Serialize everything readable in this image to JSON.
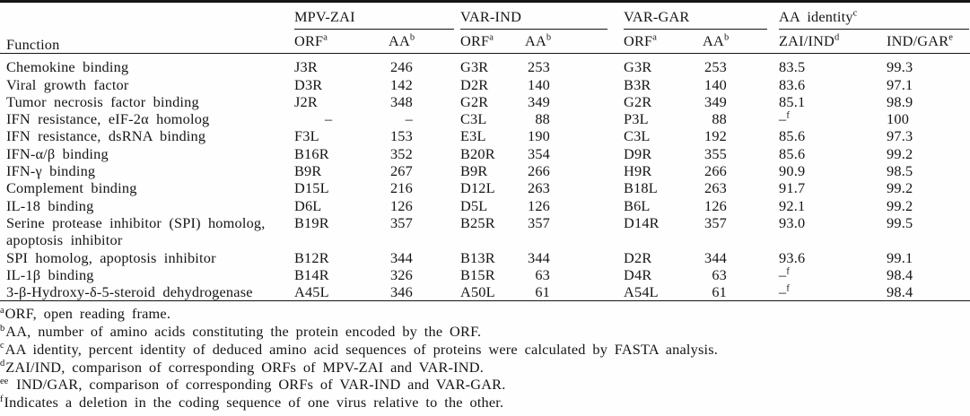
{
  "colors": {
    "ink": "#151515",
    "background": "#fefefe",
    "rule": "#151515"
  },
  "table": {
    "header": {
      "function": "Function",
      "groups": [
        {
          "label": "MPV-ZAI",
          "sup": ""
        },
        {
          "label": "VAR-IND",
          "sup": ""
        },
        {
          "label": "VAR-GAR",
          "sup": ""
        },
        {
          "label": "AA identity",
          "sup": "c"
        }
      ],
      "subheaders": {
        "orf": {
          "label": "ORF",
          "sup": "a"
        },
        "aa": {
          "label": "AA",
          "sup": "b"
        },
        "zai_ind": {
          "label": "ZAI/IND",
          "sup": "d"
        },
        "ind_gar": {
          "label": "IND/GAR",
          "sup": "e"
        }
      }
    },
    "rows": [
      {
        "function": "Chemokine binding",
        "mpv_orf": "J3R",
        "mpv_aa": "246",
        "ind_orf": "G3R",
        "ind_aa": "253",
        "gar_orf": "G3R",
        "gar_aa": "253",
        "zai_ind": "83.5",
        "zai_ind_sup": "",
        "ind_gar": "99.3"
      },
      {
        "function": "Viral growth factor",
        "mpv_orf": "D3R",
        "mpv_aa": "142",
        "ind_orf": "D2R",
        "ind_aa": "140",
        "gar_orf": "B3R",
        "gar_aa": "140",
        "zai_ind": "83.6",
        "zai_ind_sup": "",
        "ind_gar": "97.1"
      },
      {
        "function": "Tumor necrosis factor binding",
        "mpv_orf": "J2R",
        "mpv_aa": "348",
        "ind_orf": "G2R",
        "ind_aa": "349",
        "gar_orf": "G2R",
        "gar_aa": "349",
        "zai_ind": "85.1",
        "zai_ind_sup": "",
        "ind_gar": "98.9"
      },
      {
        "function": "IFN resistance, eIF-2α homolog",
        "mpv_orf": "–",
        "mpv_aa": "–",
        "ind_orf": "C3L",
        "ind_aa": "88",
        "gar_orf": "P3L",
        "gar_aa": "88",
        "zai_ind": "–",
        "zai_ind_sup": "f",
        "ind_gar": "100"
      },
      {
        "function": "IFN resistance, dsRNA binding",
        "mpv_orf": "F3L",
        "mpv_aa": "153",
        "ind_orf": "E3L",
        "ind_aa": "190",
        "gar_orf": "C3L",
        "gar_aa": "192",
        "zai_ind": "85.6",
        "zai_ind_sup": "",
        "ind_gar": "97.3"
      },
      {
        "function": "IFN-α/β binding",
        "mpv_orf": "B16R",
        "mpv_aa": "352",
        "ind_orf": "B20R",
        "ind_aa": "354",
        "gar_orf": "D9R",
        "gar_aa": "355",
        "zai_ind": "85.6",
        "zai_ind_sup": "",
        "ind_gar": "99.2"
      },
      {
        "function": "IFN-γ binding",
        "mpv_orf": "B9R",
        "mpv_aa": "267",
        "ind_orf": "B9R",
        "ind_aa": "266",
        "gar_orf": "H9R",
        "gar_aa": "266",
        "zai_ind": "90.9",
        "zai_ind_sup": "",
        "ind_gar": "98.5"
      },
      {
        "function": "Complement binding",
        "mpv_orf": "D15L",
        "mpv_aa": "216",
        "ind_orf": "D12L",
        "ind_aa": "263",
        "gar_orf": "B18L",
        "gar_aa": "263",
        "zai_ind": "91.7",
        "zai_ind_sup": "",
        "ind_gar": "99.2"
      },
      {
        "function": "IL-18 binding",
        "mpv_orf": "D6L",
        "mpv_aa": "126",
        "ind_orf": "D5L",
        "ind_aa": "126",
        "gar_orf": "B6L",
        "gar_aa": "126",
        "zai_ind": "92.1",
        "zai_ind_sup": "",
        "ind_gar": "99.2"
      },
      {
        "function": "Serine protease inhibitor (SPI) homolog, apoptosis inhibitor",
        "mpv_orf": "B19R",
        "mpv_aa": "357",
        "ind_orf": "B25R",
        "ind_aa": "357",
        "gar_orf": "D14R",
        "gar_aa": "357",
        "zai_ind": "93.0",
        "zai_ind_sup": "",
        "ind_gar": "99.5"
      },
      {
        "function": "SPI homolog, apoptosis inhibitor",
        "mpv_orf": "B12R",
        "mpv_aa": "344",
        "ind_orf": "B13R",
        "ind_aa": "344",
        "gar_orf": "D2R",
        "gar_aa": "344",
        "zai_ind": "93.6",
        "zai_ind_sup": "",
        "ind_gar": "99.1"
      },
      {
        "function": "IL-1β binding",
        "mpv_orf": "B14R",
        "mpv_aa": "326",
        "ind_orf": "B15R",
        "ind_aa": "63",
        "gar_orf": "D4R",
        "gar_aa": "63",
        "zai_ind": "–",
        "zai_ind_sup": "f",
        "ind_gar": "98.4"
      },
      {
        "function": "3-β-Hydroxy-δ-5-steroid dehydrogenase",
        "mpv_orf": "A45L",
        "mpv_aa": "346",
        "ind_orf": "A50L",
        "ind_aa": "61",
        "gar_orf": "A54L",
        "gar_aa": "61",
        "zai_ind": "–",
        "zai_ind_sup": "f",
        "ind_gar": "98.4"
      }
    ],
    "footnotes": [
      {
        "sup": "a",
        "text": "ORF, open reading frame."
      },
      {
        "sup": "b",
        "text": "AA, number of amino acids constituting the protein encoded by the ORF."
      },
      {
        "sup": "c",
        "text": "AA identity, percent identity of deduced amino acid sequences of proteins were calculated by FASTA analysis."
      },
      {
        "sup": "d",
        "text": "ZAI/IND, comparison of corresponding ORFs of MPV-ZAI and VAR-IND."
      },
      {
        "sup": "ee",
        "text": " IND/GAR, comparison of corresponding ORFs of VAR-IND and VAR-GAR."
      },
      {
        "sup": "f",
        "text": "Indicates a deletion in the coding sequence of one virus relative to the other."
      }
    ]
  }
}
